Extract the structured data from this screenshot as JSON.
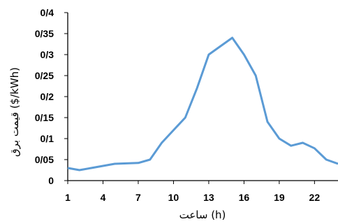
{
  "chart_data": {
    "type": "line",
    "title": "",
    "xlabel": "ساعت (h)",
    "ylabel": "قیمت برق ($/kWh)",
    "x": [
      1,
      2,
      3,
      4,
      5,
      6,
      7,
      8,
      9,
      10,
      11,
      12,
      13,
      14,
      15,
      16,
      17,
      18,
      19,
      20,
      21,
      22,
      23,
      24
    ],
    "series": [
      {
        "values": [
          0.03,
          0.025,
          0.03,
          0.035,
          0.04,
          0.041,
          0.042,
          0.05,
          0.09,
          0.12,
          0.15,
          0.22,
          0.3,
          0.32,
          0.34,
          0.3,
          0.25,
          0.14,
          0.1,
          0.083,
          0.09,
          0.077,
          0.05,
          0.04
        ]
      }
    ],
    "xticks": [
      "1",
      "4",
      "7",
      "10",
      "13",
      "16",
      "19",
      "22"
    ],
    "xtick_values": [
      1,
      4,
      7,
      10,
      13,
      16,
      19,
      22
    ],
    "yticks": [
      "0",
      "0/05",
      "0/1",
      "0/15",
      "0/2",
      "0/25",
      "0/3",
      "0/35",
      "0/4"
    ],
    "ytick_values": [
      0,
      0.05,
      0.1,
      0.15,
      0.2,
      0.25,
      0.3,
      0.35,
      0.4
    ],
    "xlim": [
      1,
      24
    ],
    "ylim": [
      0,
      0.4
    ],
    "grid": false,
    "legend": "none",
    "line_color": "#5b9bd5"
  }
}
